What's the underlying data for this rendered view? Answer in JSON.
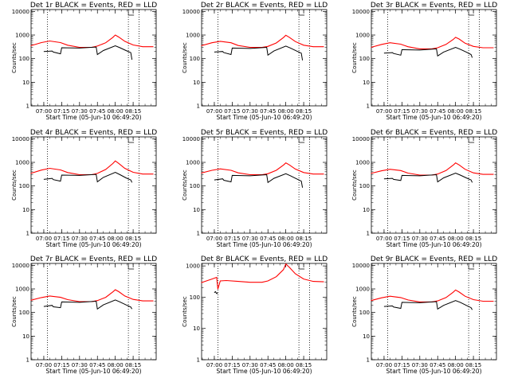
{
  "chart_data": [
    {
      "type": "line",
      "title": "Det 1r BLACK = Events, RED = LLD",
      "xlabel": "Start Time (05-Jun-10 06:49:20)",
      "ylabel": "Counts/sec",
      "y_scale": "log",
      "ylim": [
        1,
        12000
      ],
      "x_ticks": [
        "07:00",
        "07:15",
        "07:30",
        "07:45",
        "08:00",
        "08:15"
      ],
      "y_ticks": [
        "1",
        "10",
        "100",
        "1000",
        "10000"
      ],
      "vlines": [
        "07:03",
        "08:11",
        "08:20"
      ],
      "series": [
        {
          "color": "#ff0000",
          "x": [
            "06:49",
            "06:58",
            "07:05",
            "07:14",
            "07:20",
            "07:30",
            "07:40",
            "07:45",
            "07:52",
            "07:58",
            "08:00",
            "08:03",
            "08:08",
            "08:15",
            "08:23",
            "08:32"
          ],
          "values": [
            350,
            480,
            560,
            480,
            370,
            300,
            300,
            340,
            470,
            800,
            1000,
            820,
            540,
            380,
            320,
            320
          ]
        },
        {
          "color": "#000000",
          "x": [
            "07:00",
            "07:07",
            "07:08",
            "07:14",
            "07:15",
            "07:30",
            "07:44",
            "07:45",
            "07:50",
            "08:00",
            "08:04",
            "08:09",
            "08:13",
            "08:14"
          ],
          "values": [
            200,
            210,
            190,
            160,
            290,
            280,
            310,
            150,
            220,
            350,
            290,
            220,
            180,
            90
          ]
        }
      ]
    },
    {
      "type": "line",
      "title": "Det 2r BLACK = Events, RED = LLD",
      "xlabel": "Start Time (05-Jun-10 06:49:20)",
      "ylabel": "Counts/sec",
      "y_scale": "log",
      "ylim": [
        1,
        12000
      ],
      "x_ticks": [
        "07:00",
        "07:15",
        "07:30",
        "07:45",
        "08:00",
        "08:15"
      ],
      "y_ticks": [
        "1",
        "10",
        "100",
        "1000",
        "10000"
      ],
      "vlines": [
        "07:03",
        "08:11",
        "08:20"
      ],
      "series": [
        {
          "color": "#ff0000",
          "x": [
            "06:49",
            "06:58",
            "07:05",
            "07:14",
            "07:20",
            "07:30",
            "07:40",
            "07:45",
            "07:52",
            "07:58",
            "08:00",
            "08:03",
            "08:08",
            "08:15",
            "08:23",
            "08:32"
          ],
          "values": [
            350,
            470,
            540,
            470,
            360,
            300,
            300,
            330,
            460,
            780,
            980,
            800,
            530,
            370,
            320,
            320
          ]
        },
        {
          "color": "#000000",
          "x": [
            "07:00",
            "07:07",
            "07:08",
            "07:14",
            "07:15",
            "07:30",
            "07:44",
            "07:45",
            "07:50",
            "08:00",
            "08:04",
            "08:09",
            "08:13",
            "08:14"
          ],
          "values": [
            190,
            200,
            180,
            150,
            280,
            270,
            300,
            140,
            210,
            340,
            280,
            210,
            170,
            85
          ]
        }
      ]
    },
    {
      "type": "line",
      "title": "Det 3r BLACK = Events, RED = LLD",
      "xlabel": "Start Time (05-Jun-10 06:49:20)",
      "ylabel": "Counts/sec",
      "y_scale": "log",
      "ylim": [
        1,
        12000
      ],
      "x_ticks": [
        "07:00",
        "07:15",
        "07:30",
        "07:45",
        "08:00",
        "08:15"
      ],
      "y_ticks": [
        "1",
        "10",
        "100",
        "1000",
        "10000"
      ],
      "vlines": [
        "07:03",
        "08:11",
        "08:20"
      ],
      "series": [
        {
          "color": "#ff0000",
          "x": [
            "06:49",
            "06:58",
            "07:05",
            "07:14",
            "07:20",
            "07:30",
            "07:40",
            "07:45",
            "07:52",
            "07:58",
            "08:00",
            "08:03",
            "08:08",
            "08:15",
            "08:23",
            "08:32"
          ],
          "values": [
            300,
            400,
            470,
            410,
            320,
            260,
            260,
            290,
            400,
            650,
            800,
            680,
            450,
            330,
            290,
            290
          ]
        },
        {
          "color": "#000000",
          "x": [
            "07:00",
            "07:07",
            "07:08",
            "07:14",
            "07:15",
            "07:30",
            "07:44",
            "07:45",
            "07:50",
            "08:00",
            "08:04",
            "08:09",
            "08:13",
            "08:14"
          ],
          "values": [
            170,
            180,
            165,
            140,
            240,
            230,
            260,
            130,
            190,
            300,
            250,
            190,
            150,
            110
          ]
        }
      ]
    },
    {
      "type": "line",
      "title": "Det 4r BLACK = Events, RED = LLD",
      "xlabel": "Start Time (05-Jun-10 06:49:20)",
      "ylabel": "Counts/sec",
      "y_scale": "log",
      "ylim": [
        1,
        12000
      ],
      "x_ticks": [
        "07:00",
        "07:15",
        "07:30",
        "07:45",
        "08:00",
        "08:15"
      ],
      "y_ticks": [
        "1",
        "10",
        "100",
        "1000",
        "10000"
      ],
      "vlines": [
        "07:03",
        "08:11",
        "08:20"
      ],
      "series": [
        {
          "color": "#ff0000",
          "x": [
            "06:49",
            "06:58",
            "07:05",
            "07:14",
            "07:20",
            "07:30",
            "07:40",
            "07:45",
            "07:52",
            "07:58",
            "08:00",
            "08:03",
            "08:08",
            "08:15",
            "08:23",
            "08:32"
          ],
          "values": [
            340,
            470,
            560,
            480,
            370,
            300,
            300,
            340,
            500,
            900,
            1150,
            900,
            560,
            380,
            320,
            320
          ]
        },
        {
          "color": "#000000",
          "x": [
            "07:00",
            "07:07",
            "07:08",
            "07:14",
            "07:15",
            "07:30",
            "07:44",
            "07:45",
            "07:50",
            "08:00",
            "08:04",
            "08:09",
            "08:13",
            "08:14"
          ],
          "values": [
            190,
            210,
            185,
            160,
            290,
            280,
            310,
            150,
            230,
            380,
            300,
            220,
            180,
            140
          ]
        }
      ]
    },
    {
      "type": "line",
      "title": "Det 5r BLACK = Events, RED = LLD",
      "xlabel": "Start Time (05-Jun-10 06:49:20)",
      "ylabel": "Counts/sec",
      "y_scale": "log",
      "ylim": [
        1,
        12000
      ],
      "x_ticks": [
        "07:00",
        "07:15",
        "07:30",
        "07:45",
        "08:00",
        "08:15"
      ],
      "y_ticks": [
        "1",
        "10",
        "100",
        "1000",
        "10000"
      ],
      "vlines": [
        "07:03",
        "08:11",
        "08:20"
      ],
      "series": [
        {
          "color": "#ff0000",
          "x": [
            "06:49",
            "06:58",
            "07:05",
            "07:14",
            "07:20",
            "07:30",
            "07:40",
            "07:45",
            "07:52",
            "07:58",
            "08:00",
            "08:03",
            "08:08",
            "08:15",
            "08:23",
            "08:32"
          ],
          "values": [
            350,
            460,
            530,
            460,
            360,
            300,
            300,
            330,
            460,
            770,
            950,
            780,
            520,
            370,
            320,
            320
          ]
        },
        {
          "color": "#000000",
          "x": [
            "07:00",
            "07:07",
            "07:08",
            "07:14",
            "07:15",
            "07:30",
            "07:44",
            "07:45",
            "07:50",
            "08:00",
            "08:04",
            "08:09",
            "08:13",
            "08:14"
          ],
          "values": [
            180,
            200,
            175,
            150,
            280,
            270,
            300,
            140,
            210,
            330,
            270,
            200,
            160,
            85
          ]
        }
      ]
    },
    {
      "type": "line",
      "title": "Det 6r BLACK = Events, RED = LLD",
      "xlabel": "Start Time (05-Jun-10 06:49:20)",
      "ylabel": "Counts/sec",
      "y_scale": "log",
      "ylim": [
        1,
        12000
      ],
      "x_ticks": [
        "07:00",
        "07:15",
        "07:30",
        "07:45",
        "08:00",
        "08:15"
      ],
      "y_ticks": [
        "1",
        "10",
        "100",
        "1000",
        "10000"
      ],
      "vlines": [
        "07:03",
        "08:11",
        "08:20"
      ],
      "series": [
        {
          "color": "#ff0000",
          "x": [
            "06:49",
            "06:58",
            "07:05",
            "07:14",
            "07:20",
            "07:30",
            "07:40",
            "07:45",
            "07:52",
            "07:58",
            "08:00",
            "08:03",
            "08:08",
            "08:15",
            "08:23",
            "08:32"
          ],
          "values": [
            340,
            440,
            510,
            450,
            350,
            290,
            290,
            320,
            450,
            760,
            950,
            780,
            510,
            360,
            310,
            310
          ]
        },
        {
          "color": "#000000",
          "x": [
            "07:00",
            "07:07",
            "07:08",
            "07:14",
            "07:15",
            "07:30",
            "07:44",
            "07:45",
            "07:50",
            "08:00",
            "08:04",
            "08:09",
            "08:13",
            "08:14"
          ],
          "values": [
            200,
            210,
            190,
            170,
            280,
            270,
            300,
            150,
            220,
            350,
            290,
            220,
            180,
            140
          ]
        }
      ]
    },
    {
      "type": "line",
      "title": "Det 7r BLACK = Events, RED = LLD",
      "xlabel": "Start Time (05-Jun-10 06:49:20)",
      "ylabel": "Counts/sec",
      "y_scale": "log",
      "ylim": [
        1,
        12000
      ],
      "x_ticks": [
        "07:00",
        "07:15",
        "07:30",
        "07:45",
        "08:00",
        "08:15"
      ],
      "y_ticks": [
        "1",
        "10",
        "100",
        "1000",
        "10000"
      ],
      "vlines": [
        "07:03",
        "08:11",
        "08:20"
      ],
      "series": [
        {
          "color": "#ff0000",
          "x": [
            "06:49",
            "06:58",
            "07:05",
            "07:14",
            "07:20",
            "07:30",
            "07:40",
            "07:45",
            "07:52",
            "07:58",
            "08:00",
            "08:03",
            "08:08",
            "08:15",
            "08:23",
            "08:32"
          ],
          "values": [
            330,
            430,
            500,
            440,
            350,
            290,
            290,
            320,
            440,
            750,
            920,
            760,
            500,
            360,
            310,
            310
          ]
        },
        {
          "color": "#000000",
          "x": [
            "07:00",
            "07:07",
            "07:08",
            "07:14",
            "07:15",
            "07:30",
            "07:44",
            "07:45",
            "07:50",
            "08:00",
            "08:04",
            "08:09",
            "08:13",
            "08:14"
          ],
          "values": [
            180,
            200,
            175,
            160,
            280,
            270,
            300,
            140,
            210,
            340,
            280,
            210,
            170,
            140
          ]
        }
      ]
    },
    {
      "type": "line",
      "title": "Det 8r BLACK = Events, RED = LLD",
      "xlabel": "Start Time (05-Jun-10 06:49:20)",
      "ylabel": "Counts/sec",
      "y_scale": "log",
      "ylim": [
        1,
        1200
      ],
      "x_ticks": [
        "07:00",
        "07:15",
        "07:30",
        "07:45",
        "08:00",
        "08:15"
      ],
      "y_ticks": [
        "1",
        "10",
        "100",
        "1000"
      ],
      "vlines": [
        "07:03",
        "08:11",
        "08:20"
      ],
      "series": [
        {
          "color": "#ff0000",
          "x": [
            "06:49",
            "06:58",
            "07:02",
            "07:03",
            "07:05",
            "07:10",
            "07:20",
            "07:30",
            "07:40",
            "07:45",
            "07:52",
            "07:58",
            "08:00",
            "08:03",
            "08:08",
            "08:15",
            "08:23",
            "08:32"
          ],
          "values": [
            290,
            380,
            430,
            180,
            330,
            340,
            320,
            300,
            300,
            330,
            450,
            760,
            1150,
            900,
            560,
            380,
            320,
            310
          ]
        },
        {
          "color": "#000000",
          "x": [
            "07:00",
            "07:01",
            "07:02",
            "07:03"
          ],
          "values": [
            140,
            150,
            130,
            140
          ]
        }
      ]
    },
    {
      "type": "line",
      "title": "Det 9r BLACK = Events, RED = LLD",
      "xlabel": "Start Time (05-Jun-10 06:49:20)",
      "ylabel": "Counts/sec",
      "y_scale": "log",
      "ylim": [
        1,
        12000
      ],
      "x_ticks": [
        "07:00",
        "07:15",
        "07:30",
        "07:45",
        "08:00",
        "08:15"
      ],
      "y_ticks": [
        "1",
        "10",
        "100",
        "1000",
        "10000"
      ],
      "vlines": [
        "07:03",
        "08:11",
        "08:20"
      ],
      "series": [
        {
          "color": "#ff0000",
          "x": [
            "06:49",
            "06:58",
            "07:05",
            "07:14",
            "07:20",
            "07:30",
            "07:40",
            "07:45",
            "07:52",
            "07:58",
            "08:00",
            "08:03",
            "08:08",
            "08:15",
            "08:23",
            "08:32"
          ],
          "values": [
            320,
            420,
            490,
            430,
            340,
            280,
            280,
            310,
            430,
            720,
            900,
            740,
            490,
            350,
            300,
            300
          ]
        },
        {
          "color": "#000000",
          "x": [
            "07:00",
            "07:07",
            "07:08",
            "07:14",
            "07:15",
            "07:30",
            "07:44",
            "07:45",
            "07:50",
            "08:00",
            "08:04",
            "08:09",
            "08:13",
            "08:14"
          ],
          "values": [
            180,
            190,
            170,
            150,
            270,
            260,
            290,
            140,
            200,
            320,
            270,
            200,
            160,
            130
          ]
        }
      ]
    }
  ]
}
